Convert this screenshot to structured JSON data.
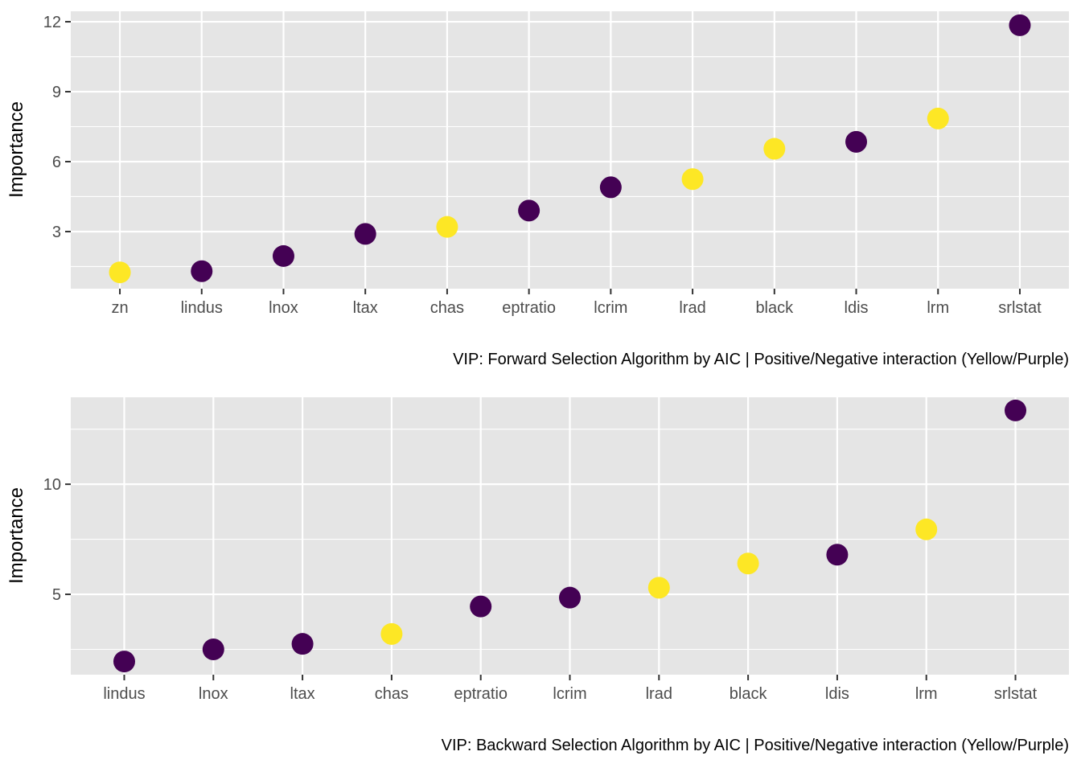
{
  "colors": {
    "panel_bg": "#e5e5e5",
    "grid_major": "#ffffff",
    "tick_text": "#4d4d4d",
    "positive": "#fde725",
    "negative": "#440154"
  },
  "chart_data": [
    {
      "type": "scatter",
      "ylabel": "Importance",
      "caption": "VIP: Forward Selection Algorithm by AIC | Positive/Negative interaction (Yellow/Purple)",
      "ylim": [
        0.55,
        12.45
      ],
      "y_ticks": [
        3,
        6,
        9,
        12
      ],
      "y_tick_labels": [
        "3",
        "6",
        "9",
        "12"
      ],
      "y_minor_ticks": [
        1.5,
        4.5,
        7.5,
        10.5
      ],
      "grid": true,
      "categories": [
        "zn",
        "lindus",
        "lnox",
        "ltax",
        "chas",
        "eptratio",
        "lcrim",
        "lrad",
        "black",
        "ldis",
        "lrm",
        "srlstat"
      ],
      "values": [
        1.25,
        1.3,
        1.95,
        2.9,
        3.2,
        3.9,
        4.9,
        5.25,
        6.55,
        6.85,
        7.85,
        11.85
      ],
      "sign": [
        "positive",
        "negative",
        "negative",
        "negative",
        "positive",
        "negative",
        "negative",
        "positive",
        "positive",
        "negative",
        "positive",
        "negative"
      ]
    },
    {
      "type": "scatter",
      "ylabel": "Importance",
      "caption": "VIP: Backward Selection Algorithm by AIC | Positive/Negative interaction (Yellow/Purple)",
      "ylim": [
        1.35,
        13.95
      ],
      "y_ticks": [
        5,
        10
      ],
      "y_tick_labels": [
        "5",
        "10"
      ],
      "y_minor_ticks": [
        2.5,
        7.5,
        12.5
      ],
      "grid": true,
      "categories": [
        "lindus",
        "lnox",
        "ltax",
        "chas",
        "eptratio",
        "lcrim",
        "lrad",
        "black",
        "ldis",
        "lrm",
        "srlstat"
      ],
      "values": [
        1.95,
        2.5,
        2.75,
        3.2,
        4.45,
        4.85,
        5.3,
        6.4,
        6.8,
        7.95,
        13.35
      ],
      "sign": [
        "negative",
        "negative",
        "negative",
        "positive",
        "negative",
        "negative",
        "positive",
        "positive",
        "negative",
        "positive",
        "negative"
      ]
    }
  ]
}
